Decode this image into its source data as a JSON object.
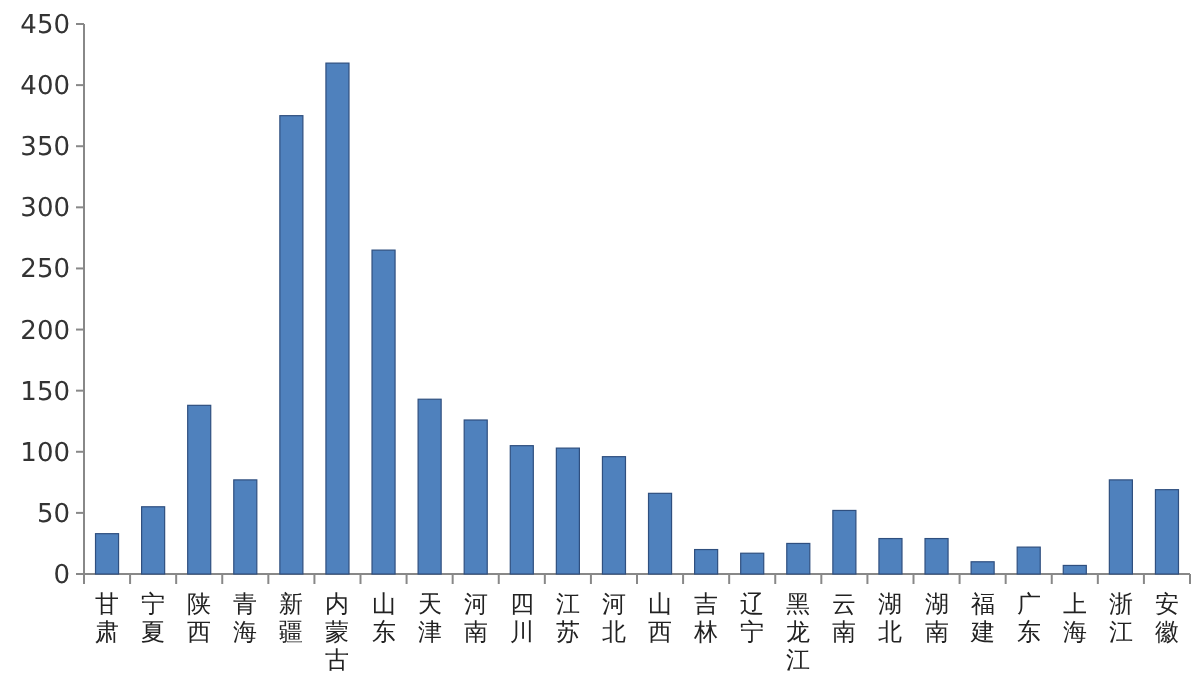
{
  "chart_data": {
    "type": "bar",
    "categories": [
      "甘肃",
      "宁夏",
      "陕西",
      "青海",
      "新疆",
      "内蒙古",
      "山东",
      "天津",
      "河南",
      "四川",
      "江苏",
      "河北",
      "山西",
      "吉林",
      "辽宁",
      "黑龙江",
      "云南",
      "湖北",
      "湖南",
      "福建",
      "广东",
      "上海",
      "浙江",
      "安徽"
    ],
    "values": [
      33,
      55,
      138,
      77,
      375,
      418,
      265,
      143,
      126,
      105,
      103,
      96,
      66,
      20,
      17,
      25,
      52,
      29,
      29,
      10,
      22,
      7,
      77,
      69
    ],
    "color": "#4f81bd",
    "ylim": [
      0,
      450
    ],
    "yticks": [
      0,
      50,
      100,
      150,
      200,
      250,
      300,
      350,
      400,
      450
    ]
  }
}
